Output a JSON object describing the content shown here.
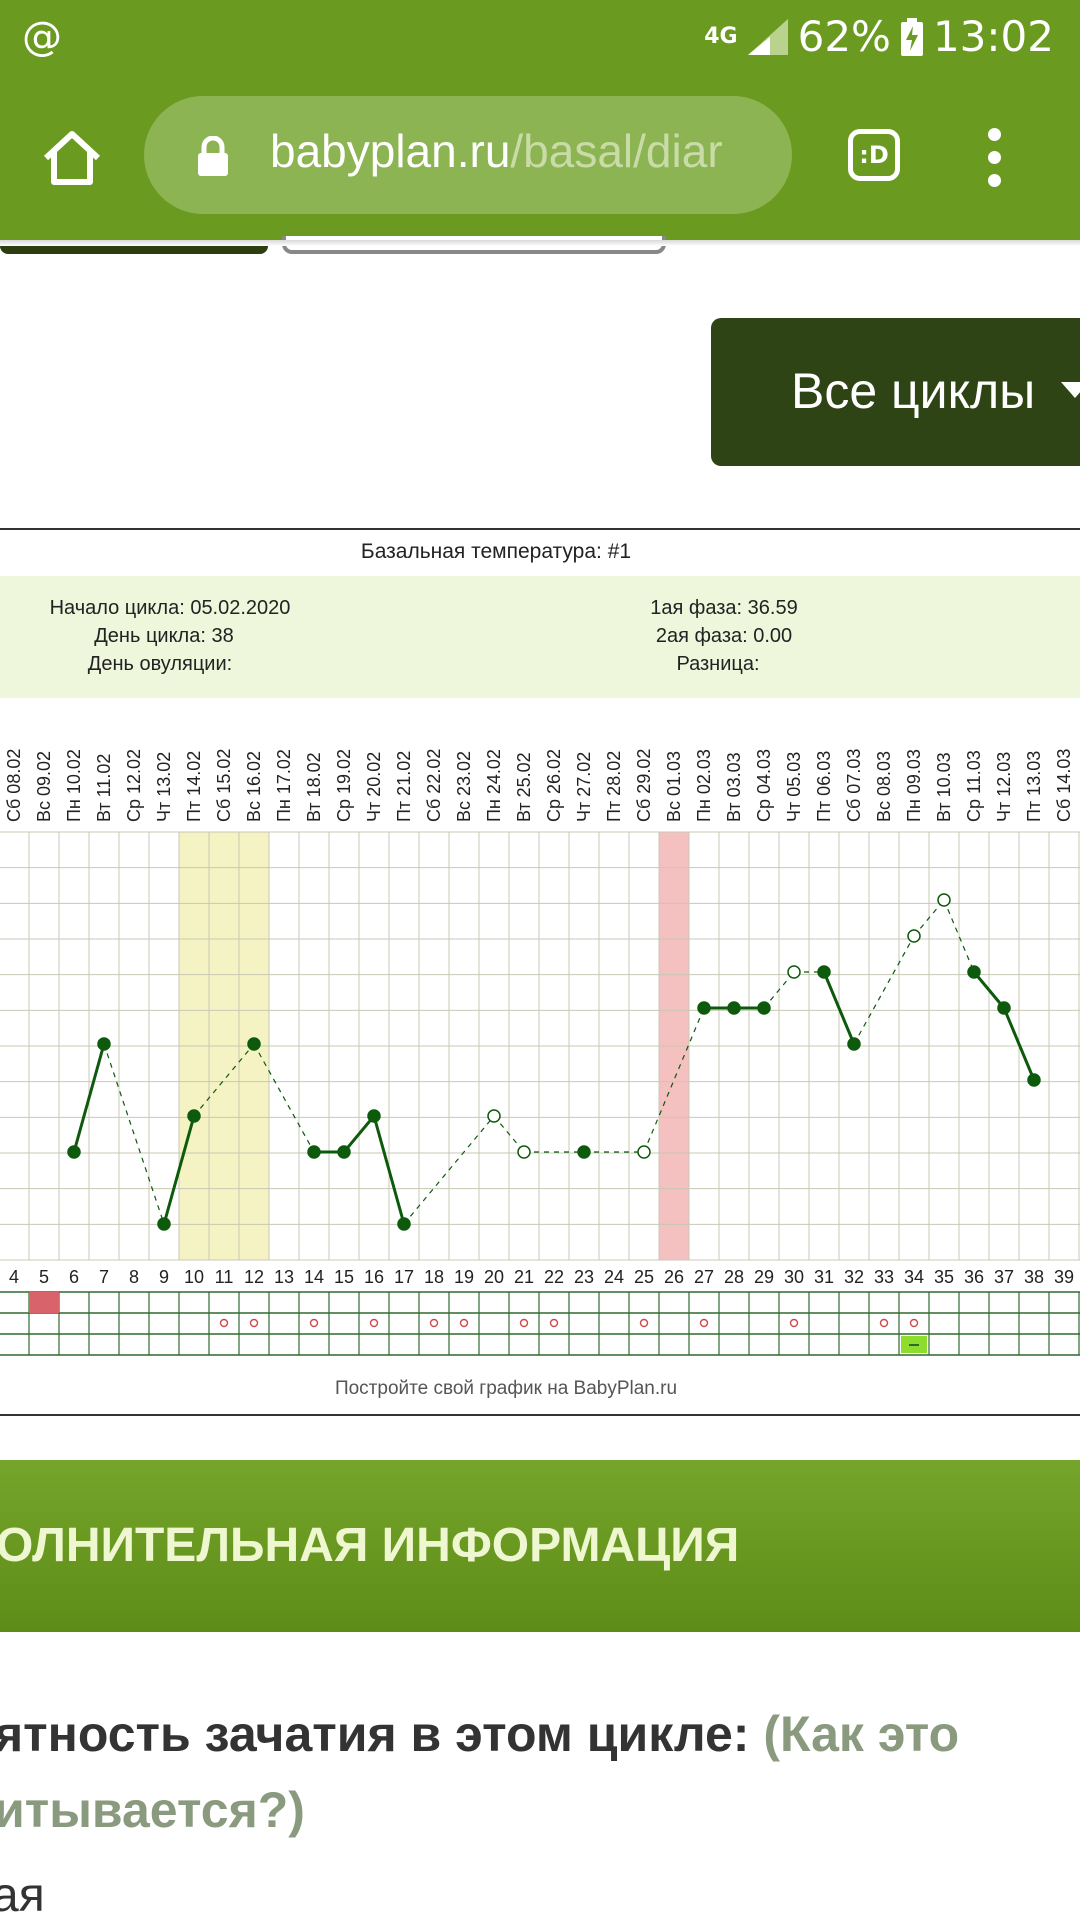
{
  "status_bar": {
    "left_icon": "@",
    "network": "4G",
    "battery": "62%",
    "time": "13:02"
  },
  "browser": {
    "url_host": "babyplan.ru",
    "url_path": "/basal/diar",
    "tab_label": ":D"
  },
  "all_cycles_button": "Все циклы",
  "chart": {
    "title": "Базальная температура: #1",
    "cycle_start": "Начало цикла: 05.02.2020",
    "cycle_day": "День цикла: 38",
    "ovulation_day": "День овуляции:",
    "phase1": "1ая фаза: 36.59",
    "phase2": "2ая фаза: 0.00",
    "difference": "Разница:",
    "footer": "Постройте свой график на BabyPlan.ru"
  },
  "chart_data": {
    "type": "line",
    "dates": [
      "Сб 08.02",
      "Вс 09.02",
      "Пн 10.02",
      "Вт 11.02",
      "Ср 12.02",
      "Чт 13.02",
      "Пт 14.02",
      "Сб 15.02",
      "Вс 16.02",
      "Пн 17.02",
      "Вт 18.02",
      "Ср 19.02",
      "Чт 20.02",
      "Пт 21.02",
      "Сб 22.02",
      "Вс 23.02",
      "Пн 24.02",
      "Вт 25.02",
      "Ср 26.02",
      "Чт 27.02",
      "Пт 28.02",
      "Сб 29.02",
      "Вс 01.03",
      "Пн 02.03",
      "Вт 03.03",
      "Ср 04.03",
      "Чт 05.03",
      "Пт 06.03",
      "Сб 07.03",
      "Вс 08.03",
      "Пн 09.03",
      "Вт 10.03",
      "Ср 11.03",
      "Чт 12.03",
      "Пт 13.03",
      "Сб 14.03"
    ],
    "days": [
      "4",
      "5",
      "6",
      "7",
      "8",
      "9",
      "10",
      "11",
      "12",
      "13",
      "14",
      "15",
      "16",
      "17",
      "18",
      "19",
      "20",
      "21",
      "22",
      "23",
      "24",
      "25",
      "26",
      "27",
      "28",
      "29",
      "30",
      "31",
      "32",
      "33",
      "34",
      "35",
      "36",
      "37",
      "38",
      "39"
    ],
    "y_level_range": [
      0,
      12
    ],
    "points": [
      {
        "day": 6,
        "level": 3,
        "measured": true
      },
      {
        "day": 7,
        "level": 6,
        "measured": true
      },
      {
        "day": 9,
        "level": 1,
        "measured": true
      },
      {
        "day": 10,
        "level": 4,
        "measured": true
      },
      {
        "day": 12,
        "level": 6,
        "measured": true
      },
      {
        "day": 14,
        "level": 3,
        "measured": true
      },
      {
        "day": 15,
        "level": 3,
        "measured": true
      },
      {
        "day": 16,
        "level": 4,
        "measured": true
      },
      {
        "day": 17,
        "level": 1,
        "measured": true
      },
      {
        "day": 20,
        "level": 4,
        "measured": false
      },
      {
        "day": 21,
        "level": 3,
        "measured": false
      },
      {
        "day": 23,
        "level": 3,
        "measured": true
      },
      {
        "day": 25,
        "level": 3,
        "measured": false
      },
      {
        "day": 27,
        "level": 7,
        "measured": true
      },
      {
        "day": 28,
        "level": 7,
        "measured": true
      },
      {
        "day": 29,
        "level": 7,
        "measured": true
      },
      {
        "day": 30,
        "level": 8,
        "measured": false
      },
      {
        "day": 31,
        "level": 8,
        "measured": true
      },
      {
        "day": 32,
        "level": 6,
        "measured": true
      },
      {
        "day": 34,
        "level": 9,
        "measured": false
      },
      {
        "day": 35,
        "level": 10,
        "measured": false
      },
      {
        "day": 36,
        "level": 8,
        "measured": true
      },
      {
        "day": 37,
        "level": 7,
        "measured": true
      },
      {
        "day": 38,
        "level": 5,
        "measured": true
      }
    ],
    "yellow_band_days": [
      10,
      12
    ],
    "pink_band_day": 26,
    "marker_days": [
      11,
      12,
      14,
      16,
      18,
      19,
      21,
      22,
      25,
      27,
      30,
      33,
      34
    ],
    "red_cell_day": 5,
    "green_cell_day": 34,
    "colors": {
      "line": "#0d5a0d",
      "yellow_band": "#f5f3c4",
      "pink_band": "#f4c0c0",
      "grid": "#c8c8b4",
      "info_bg": "#eef6dc"
    }
  },
  "section_banner": "ОЛНИТЕЛЬНАЯ ИНФОРМАЦИЯ",
  "probability": {
    "line1": "ятность зачатия в этом цикле:",
    "link_part1": "(Как это",
    "link_part2": "итывается?)"
  },
  "tail_text": "ая"
}
